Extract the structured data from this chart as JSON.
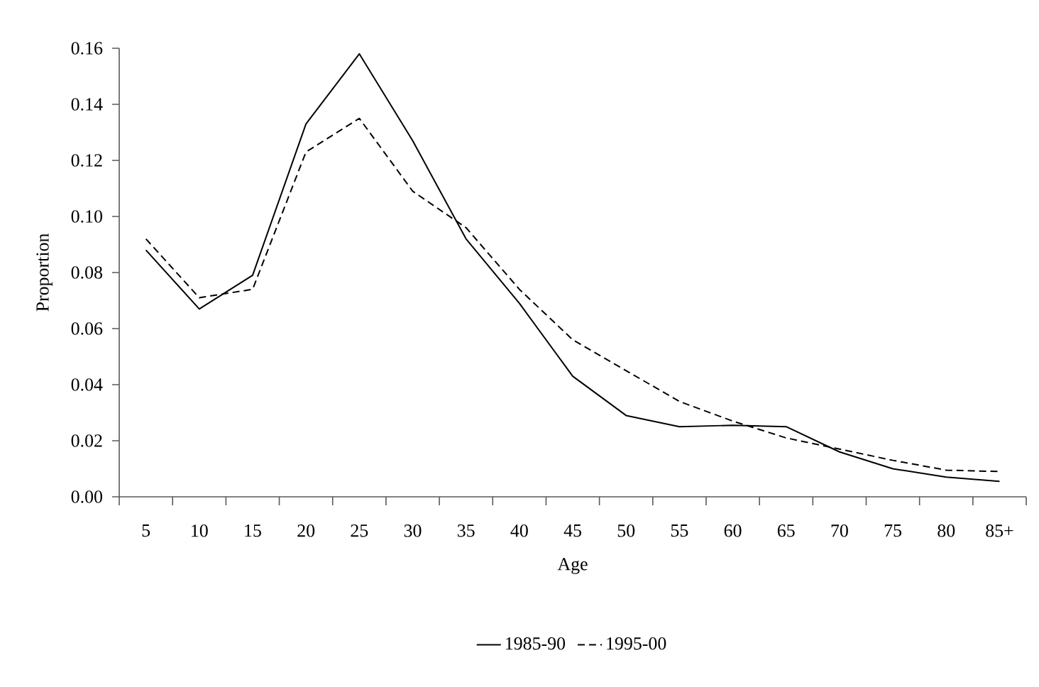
{
  "chart_data": {
    "type": "line",
    "xlabel": "Age",
    "ylabel": "Proportion",
    "categories": [
      "5",
      "10",
      "15",
      "20",
      "25",
      "30",
      "35",
      "40",
      "45",
      "50",
      "55",
      "60",
      "65",
      "70",
      "75",
      "80",
      "85+"
    ],
    "series": [
      {
        "name": "1985-90",
        "color": "#000000",
        "line_style": "solid",
        "values": [
          0.088,
          0.067,
          0.079,
          0.133,
          0.158,
          0.127,
          0.092,
          0.069,
          0.043,
          0.029,
          0.025,
          0.0255,
          0.025,
          0.016,
          0.01,
          0.007,
          0.0055
        ]
      },
      {
        "name": "1995-00",
        "color": "#000000",
        "line_style": "dashed",
        "values": [
          0.092,
          0.071,
          0.074,
          0.123,
          0.135,
          0.109,
          0.096,
          0.074,
          0.056,
          0.045,
          0.034,
          0.027,
          0.021,
          0.017,
          0.013,
          0.0095,
          0.009
        ]
      }
    ],
    "ylim": [
      0,
      0.16
    ],
    "yticks": [
      {
        "value": 0,
        "label": "0.00"
      },
      {
        "value": 0.02,
        "label": "0.02"
      },
      {
        "value": 0.04,
        "label": "0.04"
      },
      {
        "value": 0.06,
        "label": "0.06"
      },
      {
        "value": 0.08,
        "label": "0.08"
      },
      {
        "value": 0.1,
        "label": "0.10"
      },
      {
        "value": 0.12,
        "label": "0.12"
      },
      {
        "value": 0.14,
        "label": "0.14"
      },
      {
        "value": 0.16,
        "label": "0.16"
      }
    ],
    "grid": false,
    "legend": "bottom",
    "marker": "none"
  }
}
